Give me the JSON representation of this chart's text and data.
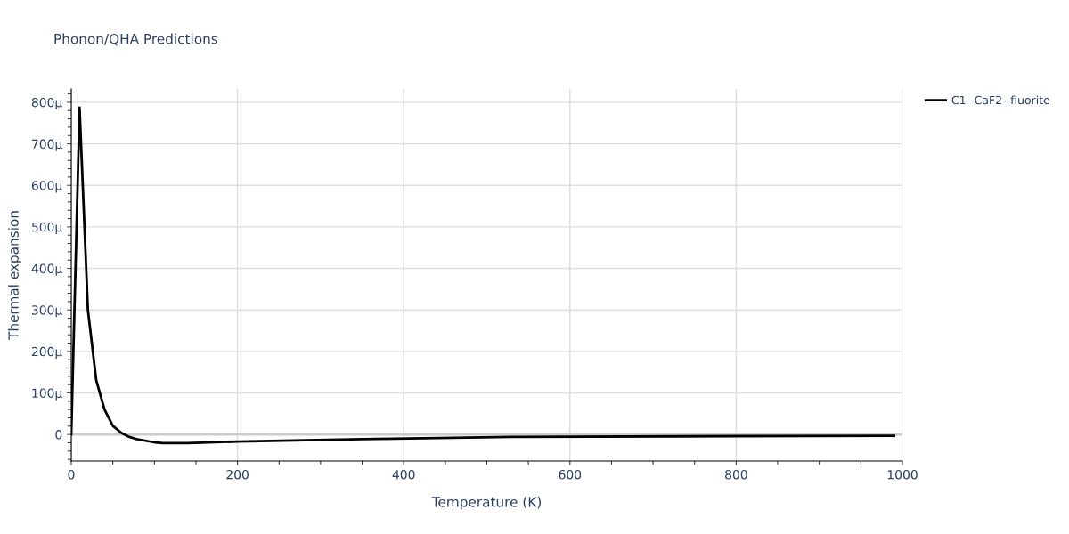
{
  "chart_data": {
    "type": "line",
    "title": "Phonon/QHA Predictions",
    "xlabel": "Temperature (K)",
    "ylabel": "Thermal expansion",
    "xlim": [
      0,
      1000
    ],
    "xticks": [
      0,
      200,
      400,
      600,
      800,
      1000
    ],
    "ylim": [
      -64,
      832
    ],
    "yticks": [
      {
        "value": 0,
        "label": "0"
      },
      {
        "value": 100,
        "label": "100μ"
      },
      {
        "value": 200,
        "label": "200μ"
      },
      {
        "value": 300,
        "label": "300μ"
      },
      {
        "value": 400,
        "label": "400μ"
      },
      {
        "value": 500,
        "label": "500μ"
      },
      {
        "value": 600,
        "label": "600μ"
      },
      {
        "value": 700,
        "label": "700μ"
      },
      {
        "value": 800,
        "label": "800μ"
      }
    ],
    "grid": true,
    "legend": "top right",
    "marker": "none",
    "line_style": "solid",
    "series": [
      {
        "name": "C1--CaF2--fluorite",
        "color": "#000000",
        "x": [
          0,
          10,
          20,
          30,
          40,
          50,
          60,
          70,
          80,
          100,
          110,
          140,
          200,
          350,
          530,
          800,
          990
        ],
        "values": [
          0,
          787,
          300,
          131,
          60,
          21,
          4,
          -6,
          -12,
          -19,
          -21,
          -21,
          -17,
          -11,
          -6,
          -4,
          -3
        ]
      }
    ]
  }
}
